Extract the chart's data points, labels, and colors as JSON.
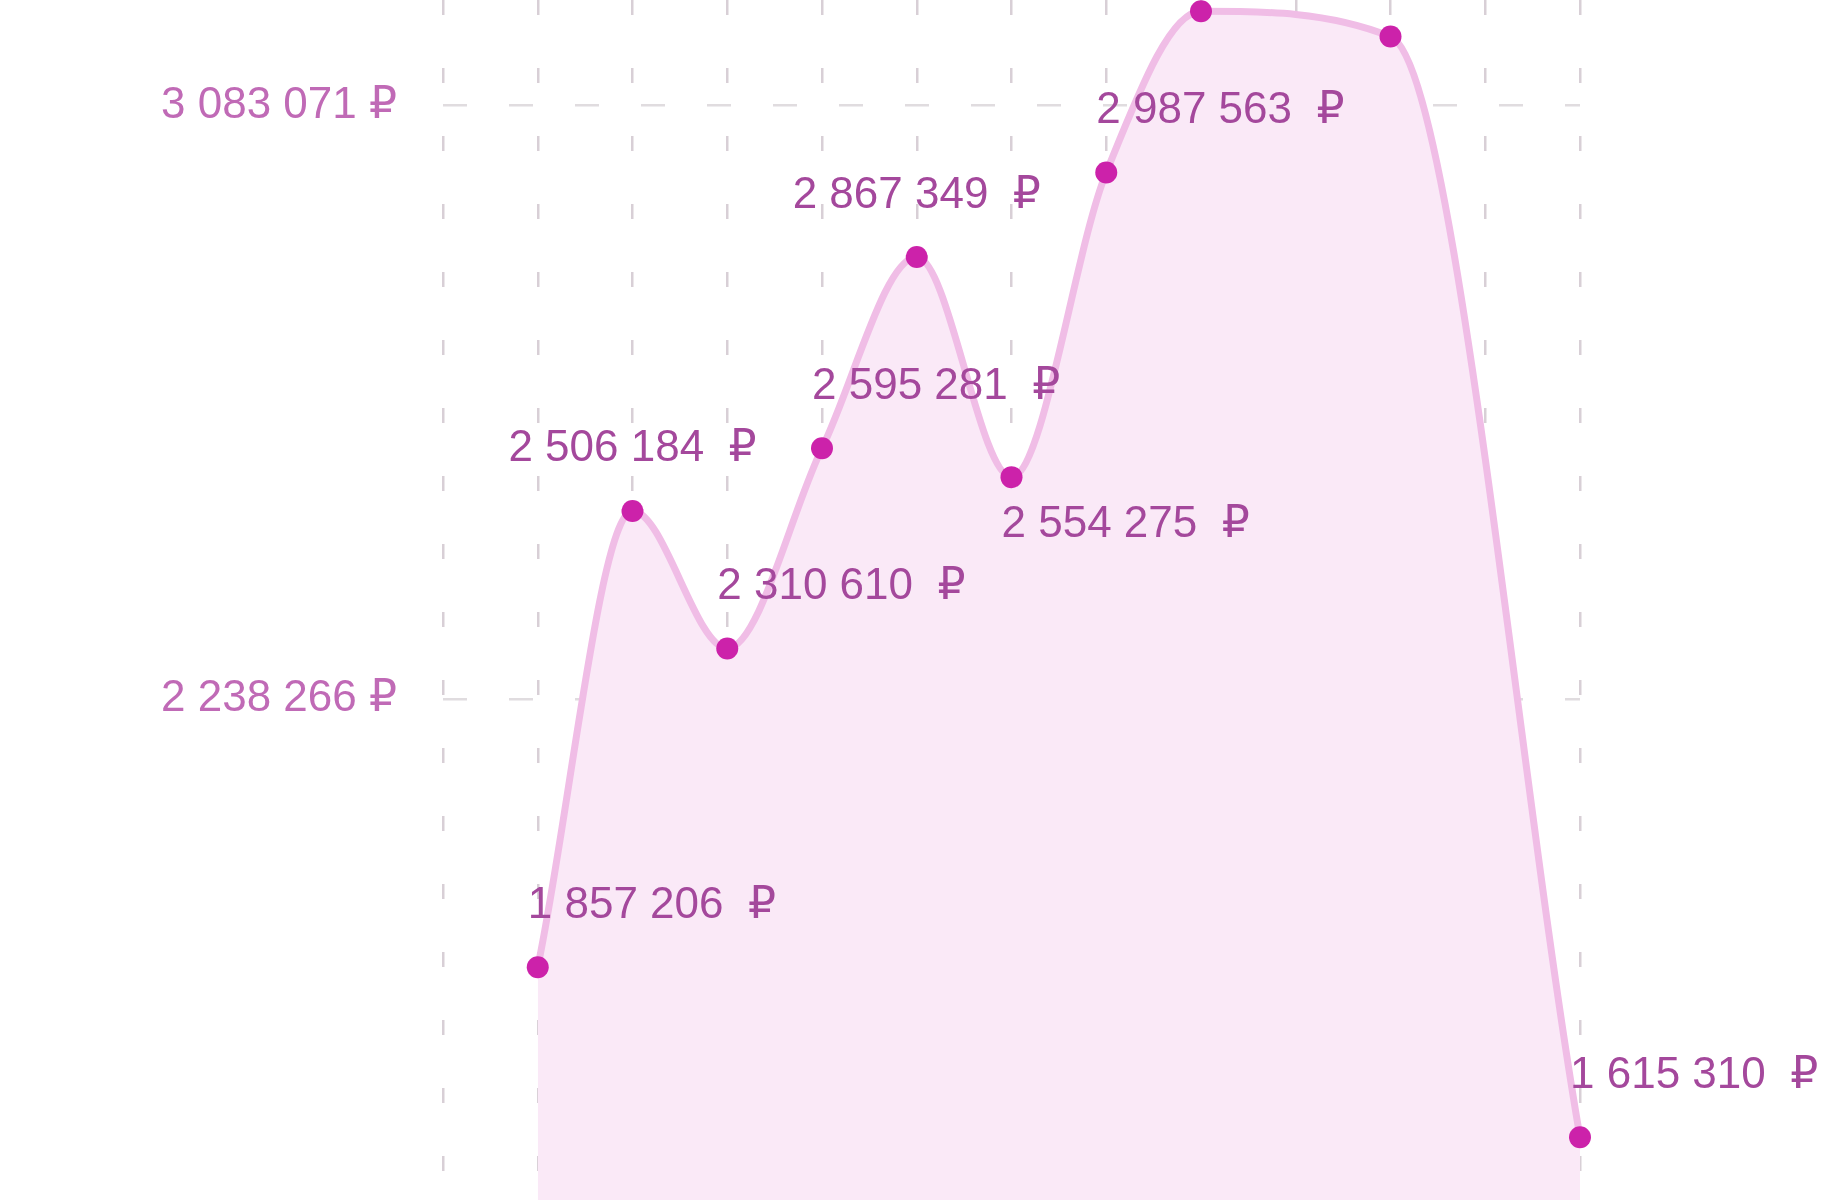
{
  "chart_data": {
    "type": "area",
    "categories": [
      null,
      null,
      null,
      null,
      null,
      null,
      null,
      null,
      null,
      null,
      null,
      null,
      null
    ],
    "values": [
      null,
      1857206,
      2506184,
      2310610,
      2595281,
      2867349,
      2554275,
      2987563,
      3217000,
      null,
      3181000,
      null,
      1615310
    ],
    "color": "#cc22aa",
    "value_labels": [
      null,
      "1 857 206  ₽",
      "2 506 184  ₽",
      "2 310 610  ₽",
      "2 595 281  ₽",
      "2 867 349  ₽",
      "2 554 275  ₽",
      "2 987 563  ₽",
      null,
      null,
      null,
      null,
      "1 615 310  ₽"
    ],
    "ylim": [
      1526000,
      3233000
    ],
    "yticks": [
      {
        "value": 3083071,
        "label": "3 083 071 ₽"
      },
      {
        "value": 2238266,
        "label": "2 238 266 ₽"
      }
    ],
    "grid": true,
    "marker": "circle",
    "line_style": "solid",
    "tick_labels": "y",
    "legend": false
  }
}
